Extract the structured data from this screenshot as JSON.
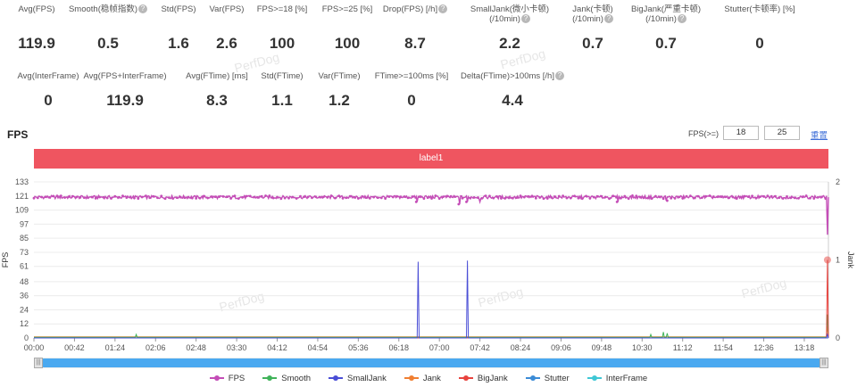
{
  "stats_row1": [
    {
      "label": "Avg(FPS)",
      "value": "119.9",
      "help": false
    },
    {
      "label": "Smooth(稳帧指数)",
      "value": "0.5",
      "help": true
    },
    {
      "label": "Std(FPS)",
      "value": "1.6",
      "help": false
    },
    {
      "label": "Var(FPS)",
      "value": "2.6",
      "help": false
    },
    {
      "label": "FPS>=18 [%]",
      "value": "100",
      "help": false
    },
    {
      "label": "FPS>=25 [%]",
      "value": "100",
      "help": false
    },
    {
      "label": "Drop(FPS) [/h]",
      "value": "8.7",
      "help": true
    },
    {
      "label": "SmallJank(微小卡顿)",
      "label2": "(/10min)",
      "value": "2.2",
      "help": true
    },
    {
      "label": "Jank(卡顿)",
      "label2": "(/10min)",
      "value": "0.7",
      "help": true
    },
    {
      "label": "BigJank(严重卡顿)",
      "label2": "(/10min)",
      "value": "0.7",
      "help": true
    },
    {
      "label": "Stutter(卡顿率) [%]",
      "value": "0",
      "help": false
    }
  ],
  "stats_row2": [
    {
      "label": "Avg(InterFrame)",
      "value": "0",
      "help": false
    },
    {
      "label": "Avg(FPS+InterFrame)",
      "value": "119.9",
      "help": false
    },
    {
      "label": "Avg(FTime) [ms]",
      "value": "8.3",
      "help": false
    },
    {
      "label": "Std(FTime)",
      "value": "1.1",
      "help": false
    },
    {
      "label": "Var(FTime)",
      "value": "1.2",
      "help": false
    },
    {
      "label": "FTime>=100ms [%]",
      "value": "0",
      "help": false
    },
    {
      "label": "Delta(FTime)>100ms [/h]",
      "value": "4.4",
      "help": true
    }
  ],
  "help_glyph": "?",
  "watermark": "PerfDog",
  "section_title": "FPS",
  "filter": {
    "label": "FPS(>=)",
    "value1": "18",
    "value2": "25",
    "reset": "重置"
  },
  "label_bar": "label1",
  "chart_data": {
    "type": "line",
    "x_tick_labels": [
      "00:00",
      "00:42",
      "01:24",
      "02:06",
      "02:48",
      "03:30",
      "04:12",
      "04:54",
      "05:36",
      "06:18",
      "07:00",
      "07:42",
      "08:24",
      "09:06",
      "09:48",
      "10:30",
      "11:12",
      "11:54",
      "12:36",
      "13:18"
    ],
    "x_range_seconds": [
      0,
      823
    ],
    "ylabel_left": "FPS",
    "ylim_left": [
      0,
      133
    ],
    "yticks_left": [
      "0",
      "12",
      "24",
      "36",
      "48",
      "61",
      "73",
      "85",
      "97",
      "109",
      "121",
      "133"
    ],
    "ylabel_right": "Jank",
    "ylim_right": [
      0,
      2
    ],
    "yticks_right": [
      "0",
      "1",
      "2"
    ],
    "grid": true,
    "legend_position": "bottom",
    "series": [
      {
        "name": "FPS",
        "color": "#c44db7",
        "axis": "left",
        "base": 120,
        "jitter": 1.3,
        "dips": [
          [
            397,
            116
          ],
          [
            441,
            114
          ],
          [
            449,
            116
          ],
          [
            462,
            116
          ],
          [
            605,
            116
          ],
          [
            655,
            117
          ],
          [
            822,
            88
          ]
        ]
      },
      {
        "name": "Smooth",
        "color": "#40b35a",
        "axis": "left",
        "base": 0.5,
        "spikes": [
          [
            106,
            3
          ],
          [
            639,
            3
          ],
          [
            652,
            5
          ],
          [
            656,
            4
          ],
          [
            822,
            20
          ]
        ]
      },
      {
        "name": "SmallJank",
        "color": "#4a4ed6",
        "axis": "left",
        "base": 0,
        "spikes": [
          [
            398,
            65
          ],
          [
            449,
            66
          ],
          [
            822,
            3
          ]
        ]
      },
      {
        "name": "Jank",
        "color": "#f07f32",
        "axis": "left",
        "base": 1,
        "spikes": [
          [
            822,
            10
          ]
        ]
      },
      {
        "name": "BigJank",
        "color": "#e8433e",
        "axis": "right",
        "base": 0,
        "spikes": [
          [
            822,
            1
          ]
        ]
      },
      {
        "name": "Stutter",
        "color": "#3b8bd6",
        "axis": "left",
        "base": 0
      },
      {
        "name": "InterFrame",
        "color": "#3fc7d5",
        "axis": "left",
        "base": 0
      }
    ]
  }
}
